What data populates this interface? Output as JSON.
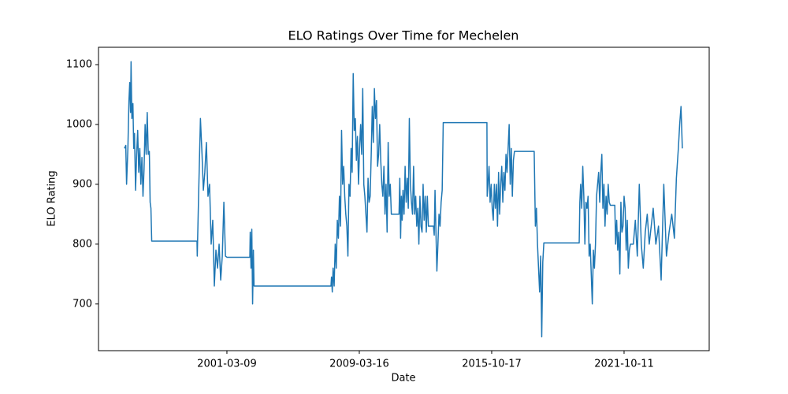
{
  "chart_data": {
    "type": "line",
    "title": "ELO Ratings Over Time for Mechelen",
    "x_label": "Date",
    "y_label": "ELO Rating",
    "color": "#1f77b4",
    "grid": false,
    "xlim": [
      30,
      4643
    ],
    "ylim": [
      622,
      1129
    ],
    "xticks": [
      {
        "value": 1000,
        "label": "2001-03-09"
      },
      {
        "value": 2000,
        "label": "2009-03-16"
      },
      {
        "value": 3000,
        "label": "2015-10-17"
      },
      {
        "value": 4000,
        "label": "2021-10-11"
      }
    ],
    "yticks": [
      700,
      800,
      900,
      1000,
      1100
    ],
    "x": [
      226,
      236,
      242,
      252,
      260,
      266,
      272,
      276,
      282,
      290,
      296,
      302,
      310,
      318,
      326,
      334,
      342,
      350,
      358,
      366,
      374,
      382,
      390,
      398,
      406,
      414,
      420,
      426,
      432,
      774,
      776,
      786,
      800,
      812,
      822,
      833,
      845,
      857,
      869,
      881,
      893,
      905,
      917,
      929,
      941,
      953,
      965,
      977,
      989,
      1001,
      1173,
      1176,
      1182,
      1188,
      1194,
      1200,
      1205,
      1786,
      1790,
      1796,
      1802,
      1810,
      1818,
      1826,
      1834,
      1842,
      1850,
      1858,
      1866,
      1874,
      1882,
      1890,
      1898,
      1906,
      1914,
      1922,
      1930,
      1938,
      1946,
      1954,
      1962,
      1970,
      1978,
      1986,
      1994,
      2002,
      2010,
      2018,
      2026,
      2034,
      2042,
      2050,
      2058,
      2066,
      2074,
      2082,
      2090,
      2098,
      2106,
      2114,
      2122,
      2130,
      2138,
      2146,
      2154,
      2162,
      2170,
      2178,
      2186,
      2194,
      2202,
      2210,
      2218,
      2226,
      2234,
      2242,
      2300,
      2306,
      2312,
      2318,
      2324,
      2330,
      2338,
      2346,
      2354,
      2362,
      2370,
      2378,
      2386,
      2394,
      2402,
      2410,
      2418,
      2426,
      2434,
      2442,
      2450,
      2458,
      2466,
      2474,
      2482,
      2490,
      2498,
      2506,
      2514,
      2522,
      2560,
      2566,
      2572,
      2578,
      2586,
      2594,
      2602,
      2610,
      2618,
      2626,
      2634,
      2964,
      2966,
      2972,
      2980,
      2988,
      2996,
      3004,
      3012,
      3020,
      3028,
      3036,
      3044,
      3052,
      3060,
      3068,
      3076,
      3084,
      3092,
      3100,
      3108,
      3116,
      3124,
      3132,
      3140,
      3148,
      3156,
      3164,
      3172,
      3321,
      3325,
      3330,
      3338,
      3346,
      3354,
      3362,
      3370,
      3378,
      3386,
      3394,
      3661,
      3666,
      3672,
      3680,
      3688,
      3696,
      3704,
      3712,
      3720,
      3728,
      3736,
      3744,
      3752,
      3760,
      3768,
      3776,
      3784,
      3792,
      3800,
      3808,
      3816,
      3824,
      3832,
      3840,
      3848,
      3856,
      3864,
      3872,
      3880,
      3888,
      3896,
      3930,
      3936,
      3944,
      3952,
      3960,
      3968,
      3976,
      3984,
      3992,
      4000,
      4008,
      4016,
      4024,
      4032,
      4040,
      4048,
      4070,
      4085,
      4100,
      4115,
      4130,
      4145,
      4160,
      4175,
      4190,
      4205,
      4220,
      4240,
      4260,
      4280,
      4300,
      4320,
      4340,
      4360,
      4380,
      4395,
      4410,
      4420,
      4430,
      4440
    ],
    "values": [
      960,
      965,
      900,
      960,
      1040,
      1070,
      1020,
      1105,
      1010,
      1035,
      960,
      985,
      890,
      950,
      990,
      920,
      960,
      900,
      945,
      880,
      925,
      1000,
      950,
      1020,
      950,
      955,
      870,
      860,
      805,
      805,
      780,
      880,
      1010,
      950,
      890,
      920,
      970,
      880,
      900,
      800,
      840,
      730,
      790,
      760,
      800,
      740,
      780,
      870,
      780,
      778,
      778,
      820,
      760,
      825,
      700,
      790,
      730,
      730,
      745,
      720,
      760,
      730,
      800,
      760,
      840,
      810,
      880,
      830,
      990,
      900,
      930,
      880,
      850,
      830,
      780,
      900,
      880,
      960,
      920,
      1085,
      990,
      1010,
      940,
      980,
      900,
      960,
      1000,
      950,
      1060,
      900,
      880,
      850,
      820,
      910,
      870,
      880,
      950,
      1030,
      970,
      1060,
      1010,
      1040,
      930,
      950,
      1000,
      940,
      900,
      880,
      930,
      850,
      900,
      820,
      970,
      880,
      900,
      850,
      850,
      910,
      810,
      880,
      840,
      890,
      850,
      930,
      870,
      910,
      860,
      1010,
      900,
      870,
      850,
      930,
      850,
      880,
      830,
      860,
      800,
      880,
      830,
      820,
      900,
      840,
      880,
      820,
      880,
      830,
      830,
      815,
      890,
      830,
      755,
      800,
      850,
      830,
      870,
      890,
      1003,
      1003,
      880,
      900,
      930,
      870,
      900,
      860,
      840,
      900,
      860,
      900,
      830,
      920,
      850,
      900,
      930,
      870,
      920,
      890,
      950,
      920,
      960,
      1000,
      900,
      960,
      880,
      940,
      955,
      955,
      900,
      830,
      860,
      800,
      760,
      720,
      780,
      645,
      770,
      802,
      802,
      870,
      900,
      860,
      930,
      880,
      800,
      870,
      860,
      880,
      780,
      800,
      750,
      700,
      790,
      760,
      800,
      880,
      900,
      920,
      870,
      920,
      950,
      860,
      900,
      830,
      880,
      850,
      900,
      870,
      865,
      865,
      800,
      840,
      790,
      820,
      750,
      870,
      820,
      830,
      880,
      860,
      790,
      840,
      760,
      790,
      800,
      800,
      840,
      780,
      900,
      800,
      760,
      820,
      850,
      800,
      830,
      860,
      800,
      830,
      740,
      900,
      780,
      820,
      850,
      810,
      910,
      960,
      1000,
      1030,
      960
    ]
  }
}
